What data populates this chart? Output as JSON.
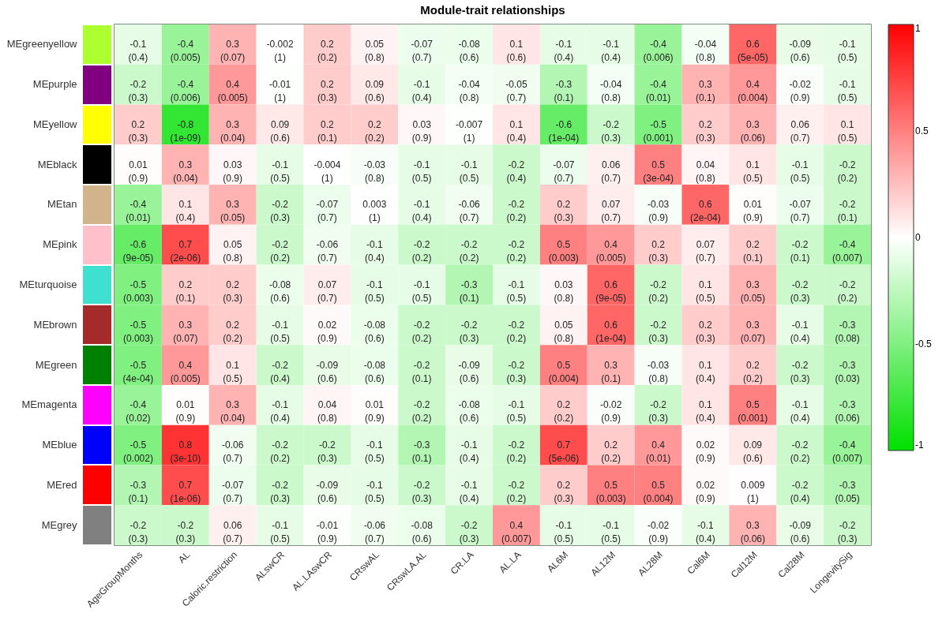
{
  "chart_data": {
    "type": "heatmap",
    "title": "Module-trait relationships",
    "categories": [
      "AgeGroupMonths",
      "AL",
      "Caloric.restriction",
      "ALswCR",
      "AL.LAswCR",
      "CRswAL",
      "CRswLA.AL",
      "CR.LA",
      "AL.LA",
      "AL6M",
      "AL12M",
      "AL28M",
      "Cal6M",
      "Cal12M",
      "Cal28M",
      "LongevitySig"
    ],
    "y_categories": [
      "MEgreenyellow",
      "MEpurple",
      "MEyellow",
      "MEblack",
      "MEtan",
      "MEpink",
      "MEturquoise",
      "MEbrown",
      "MEgreen",
      "MEmagenta",
      "MEblue",
      "MEred",
      "MEgrey"
    ],
    "cells": [
      [
        -0.1,
        -0.4,
        0.3,
        -0.002,
        0.2,
        0.05,
        -0.07,
        -0.08,
        0.1,
        -0.1,
        -0.1,
        -0.4,
        -0.04,
        0.6,
        -0.09,
        -0.1
      ],
      [
        -0.2,
        -0.4,
        0.4,
        -0.01,
        0.2,
        0.09,
        -0.1,
        -0.04,
        -0.05,
        -0.3,
        -0.04,
        -0.4,
        0.3,
        0.4,
        -0.02,
        -0.1
      ],
      [
        0.2,
        -0.8,
        0.3,
        0.09,
        0.2,
        0.2,
        0.03,
        -0.007,
        0.1,
        -0.6,
        -0.2,
        -0.5,
        0.2,
        0.3,
        0.06,
        0.1
      ],
      [
        0.01,
        0.3,
        0.03,
        -0.1,
        -0.004,
        -0.03,
        -0.1,
        -0.1,
        -0.2,
        -0.07,
        0.06,
        0.5,
        0.04,
        0.1,
        -0.1,
        -0.2
      ],
      [
        -0.4,
        0.1,
        0.3,
        -0.2,
        -0.07,
        0.003,
        -0.1,
        -0.06,
        -0.2,
        0.2,
        0.07,
        -0.03,
        0.6,
        0.01,
        -0.07,
        -0.2
      ],
      [
        -0.6,
        0.7,
        0.05,
        -0.2,
        -0.06,
        -0.1,
        -0.2,
        -0.2,
        -0.2,
        0.5,
        0.4,
        0.2,
        0.07,
        0.2,
        -0.2,
        -0.4
      ],
      [
        -0.5,
        0.2,
        0.2,
        -0.08,
        0.07,
        -0.1,
        -0.1,
        -0.3,
        -0.1,
        0.03,
        0.6,
        -0.2,
        0.1,
        0.3,
        -0.2,
        -0.2
      ],
      [
        -0.5,
        0.3,
        0.2,
        -0.1,
        0.02,
        -0.08,
        -0.2,
        -0.2,
        -0.2,
        0.05,
        0.6,
        -0.2,
        0.2,
        0.3,
        -0.1,
        -0.3
      ],
      [
        -0.5,
        0.4,
        0.1,
        -0.2,
        -0.09,
        -0.08,
        -0.2,
        -0.09,
        -0.2,
        0.5,
        0.3,
        -0.03,
        0.1,
        0.2,
        -0.2,
        -0.3
      ],
      [
        -0.4,
        0.01,
        0.3,
        -0.1,
        0.04,
        0.01,
        -0.2,
        -0.08,
        -0.1,
        0.2,
        -0.02,
        -0.2,
        0.1,
        0.5,
        -0.1,
        -0.3
      ],
      [
        -0.5,
        0.8,
        -0.06,
        -0.2,
        -0.2,
        -0.1,
        -0.3,
        -0.1,
        -0.2,
        0.7,
        0.2,
        0.4,
        0.02,
        0.09,
        -0.2,
        -0.4
      ],
      [
        -0.3,
        0.7,
        -0.07,
        -0.2,
        -0.09,
        -0.1,
        -0.2,
        -0.1,
        -0.2,
        0.2,
        0.5,
        0.5,
        0.02,
        0.009,
        -0.2,
        -0.3
      ],
      [
        -0.2,
        -0.2,
        0.06,
        -0.1,
        -0.01,
        -0.06,
        -0.08,
        -0.2,
        0.4,
        -0.1,
        -0.1,
        -0.02,
        -0.1,
        0.3,
        -0.09,
        -0.2
      ]
    ],
    "cell_labels": [
      [
        "-0.1\n(0.4)",
        "-0.4\n(0.005)",
        "0.3\n(0.07)",
        "-0.002\n(1)",
        "0.2\n(0.2)",
        "0.05\n(0.8)",
        "-0.07\n(0.7)",
        "-0.08\n(0.6)",
        "0.1\n(0.6)",
        "-0.1\n(0.4)",
        "-0.1\n(0.4)",
        "-0.4\n(0.006)",
        "-0.04\n(0.8)",
        "0.6\n(5e-05)",
        "-0.09\n(0.6)",
        "-0.1\n(0.5)"
      ],
      [
        "-0.2\n(0.3)",
        "-0.4\n(0.006)",
        "0.4\n(0.005)",
        "-0.01\n(1)",
        "0.2\n(0.3)",
        "0.09\n(0.6)",
        "-0.1\n(0.4)",
        "-0.04\n(0.8)",
        "-0.05\n(0.7)",
        "-0.3\n(0.1)",
        "-0.04\n(0.8)",
        "-0.4\n(0.01)",
        "0.3\n(0.1)",
        "0.4\n(0.004)",
        "-0.02\n(0.9)",
        "-0.1\n(0.5)"
      ],
      [
        "0.2\n(0.3)",
        "-0.8\n(1e-09)",
        "0.3\n(0.04)",
        "0.09\n(0.6)",
        "0.2\n(0.1)",
        "0.2\n(0.2)",
        "0.03\n(0.9)",
        "-0.007\n(1)",
        "0.1\n(0.4)",
        "-0.6\n(1e-04)",
        "-0.2\n(0.3)",
        "-0.5\n(0.001)",
        "0.2\n(0.3)",
        "0.3\n(0.06)",
        "0.06\n(0.7)",
        "0.1\n(0.5)"
      ],
      [
        "0.01\n(0.9)",
        "0.3\n(0.04)",
        "0.03\n(0.9)",
        "-0.1\n(0.5)",
        "-0.004\n(1)",
        "-0.03\n(0.8)",
        "-0.1\n(0.5)",
        "-0.1\n(0.5)",
        "-0.2\n(0.4)",
        "-0.07\n(0.7)",
        "0.06\n(0.7)",
        "0.5\n(3e-04)",
        "0.04\n(0.8)",
        "0.1\n(0.5)",
        "-0.1\n(0.5)",
        "-0.2\n(0.2)"
      ],
      [
        "-0.4\n(0.01)",
        "0.1\n(0.4)",
        "0.3\n(0.05)",
        "-0.2\n(0.3)",
        "-0.07\n(0.7)",
        "0.003\n(1)",
        "-0.1\n(0.4)",
        "-0.06\n(0.7)",
        "-0.2\n(0.2)",
        "0.2\n(0.3)",
        "0.07\n(0.7)",
        "-0.03\n(0.9)",
        "0.6\n(2e-04)",
        "0.01\n(0.9)",
        "-0.07\n(0.7)",
        "-0.2\n(0.1)"
      ],
      [
        "-0.6\n(9e-05)",
        "0.7\n(2e-06)",
        "0.05\n(0.8)",
        "-0.2\n(0.2)",
        "-0.06\n(0.7)",
        "-0.1\n(0.4)",
        "-0.2\n(0.2)",
        "-0.2\n(0.2)",
        "-0.2\n(0.2)",
        "0.5\n(0.003)",
        "0.4\n(0.005)",
        "0.2\n(0.3)",
        "0.07\n(0.7)",
        "0.2\n(0.1)",
        "-0.2\n(0.1)",
        "-0.4\n(0.007)"
      ],
      [
        "-0.5\n(0.003)",
        "0.2\n(0.1)",
        "0.2\n(0.3)",
        "-0.08\n(0.6)",
        "0.07\n(0.7)",
        "-0.1\n(0.5)",
        "-0.1\n(0.5)",
        "-0.3\n(0.1)",
        "-0.1\n(0.5)",
        "0.03\n(0.8)",
        "0.6\n(9e-05)",
        "-0.2\n(0.2)",
        "0.1\n(0.5)",
        "0.3\n(0.05)",
        "-0.2\n(0.3)",
        "-0.2\n(0.2)"
      ],
      [
        "-0.5\n(0.003)",
        "0.3\n(0.07)",
        "0.2\n(0.2)",
        "-0.1\n(0.5)",
        "0.02\n(0.9)",
        "-0.08\n(0.6)",
        "-0.2\n(0.2)",
        "-0.2\n(0.3)",
        "-0.2\n(0.2)",
        "0.05\n(0.8)",
        "0.6\n(1e-04)",
        "-0.2\n(0.3)",
        "0.2\n(0.3)",
        "0.3\n(0.07)",
        "-0.1\n(0.4)",
        "-0.3\n(0.08)"
      ],
      [
        "-0.5\n(4e-04)",
        "0.4\n(0.005)",
        "0.1\n(0.5)",
        "-0.2\n(0.4)",
        "-0.09\n(0.6)",
        "-0.08\n(0.6)",
        "-0.2\n(0.1)",
        "-0.09\n(0.6)",
        "-0.2\n(0.3)",
        "0.5\n(0.004)",
        "0.3\n(0.1)",
        "-0.03\n(0.8)",
        "0.1\n(0.4)",
        "0.2\n(0.2)",
        "-0.2\n(0.3)",
        "-0.3\n(0.03)"
      ],
      [
        "-0.4\n(0.02)",
        "0.01\n(0.9)",
        "0.3\n(0.04)",
        "-0.1\n(0.4)",
        "0.04\n(0.8)",
        "0.01\n(0.9)",
        "-0.2\n(0.2)",
        "-0.08\n(0.6)",
        "-0.1\n(0.5)",
        "0.2\n(0.2)",
        "-0.02\n(0.9)",
        "-0.2\n(0.3)",
        "0.1\n(0.4)",
        "0.5\n(0.001)",
        "-0.1\n(0.4)",
        "-0.3\n(0.06)"
      ],
      [
        "-0.5\n(0.002)",
        "0.8\n(3e-10)",
        "-0.06\n(0.7)",
        "-0.2\n(0.2)",
        "-0.2\n(0.3)",
        "-0.1\n(0.5)",
        "-0.3\n(0.1)",
        "-0.1\n(0.4)",
        "-0.2\n(0.2)",
        "0.7\n(5e-06)",
        "0.2\n(0.2)",
        "0.4\n(0.01)",
        "0.02\n(0.9)",
        "0.09\n(0.6)",
        "-0.2\n(0.2)",
        "-0.4\n(0.007)"
      ],
      [
        "-0.3\n(0.1)",
        "0.7\n(1e-06)",
        "-0.07\n(0.7)",
        "-0.2\n(0.3)",
        "-0.09\n(0.6)",
        "-0.1\n(0.5)",
        "-0.2\n(0.3)",
        "-0.1\n(0.4)",
        "-0.2\n(0.2)",
        "0.2\n(0.3)",
        "0.5\n(0.003)",
        "0.5\n(0.004)",
        "0.02\n(0.9)",
        "0.009\n(1)",
        "-0.2\n(0.4)",
        "-0.3\n(0.05)"
      ],
      [
        "-0.2\n(0.3)",
        "-0.2\n(0.3)",
        "0.06\n(0.7)",
        "-0.1\n(0.5)",
        "-0.01\n(0.9)",
        "-0.06\n(0.7)",
        "-0.08\n(0.6)",
        "-0.2\n(0.3)",
        "0.4\n(0.007)",
        "-0.1\n(0.5)",
        "-0.1\n(0.5)",
        "-0.02\n(0.9)",
        "-0.1\n(0.4)",
        "0.3\n(0.06)",
        "-0.09\n(0.6)",
        "-0.2\n(0.3)"
      ]
    ],
    "clim": [
      -1,
      1
    ],
    "cticks": [
      -1,
      -0.5,
      0,
      0.5,
      1
    ]
  }
}
